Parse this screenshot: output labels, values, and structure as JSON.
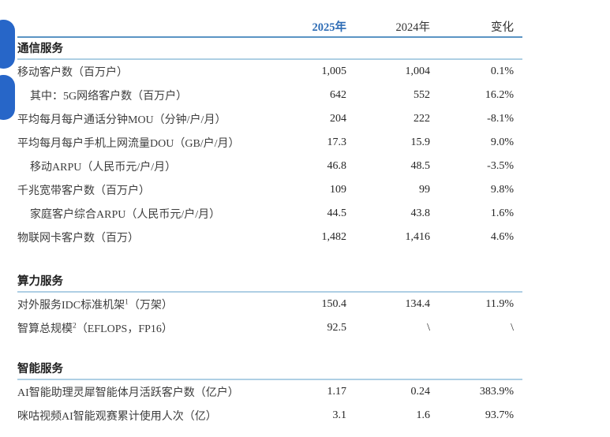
{
  "colors": {
    "accent_blue": "#2e6cb5",
    "pill_blue": "#2766c8",
    "header_rule_blue": "#5b94c4",
    "section_rule_blue": "#aecfe4"
  },
  "header": {
    "col_2025": "2025年",
    "col_2024": "2024年",
    "col_change": "变化"
  },
  "sections": [
    {
      "title": "通信服务",
      "rows": [
        {
          "label": "移动客户数（百万户）",
          "v2025": "1,005",
          "v2024": "1,004",
          "change": "0.1%"
        },
        {
          "label": "其中：5G网络客户数（百万户）",
          "v2025": "642",
          "v2024": "552",
          "change": "16.2%"
        },
        {
          "label": "平均每月每户通话分钟MOU（分钟/户/月）",
          "v2025": "204",
          "v2024": "222",
          "change": "-8.1%"
        },
        {
          "label": "平均每月每户手机上网流量DOU（GB/户/月）",
          "v2025": "17.3",
          "v2024": "15.9",
          "change": "9.0%"
        },
        {
          "label": "移动ARPU（人民币元/户/月）",
          "v2025": "46.8",
          "v2024": "48.5",
          "change": "-3.5%"
        },
        {
          "label": "千兆宽带客户数（百万户）",
          "v2025": "109",
          "v2024": "99",
          "change": "9.8%"
        },
        {
          "label": "家庭客户综合ARPU（人民币元/户/月）",
          "v2025": "44.5",
          "v2024": "43.8",
          "change": "1.6%"
        },
        {
          "label": "物联网卡客户数（百万）",
          "v2025": "1,482",
          "v2024": "1,416",
          "change": "4.6%"
        }
      ]
    },
    {
      "title": "算力服务",
      "rows": [
        {
          "name": "对外服务IDC标准机架",
          "sup": "1",
          "suffix": "（万架）",
          "v2025": "150.4",
          "v2024": "134.4",
          "change": "11.9%"
        },
        {
          "name": "智算总规模",
          "sup": "2",
          "suffix": "（EFLOPS，FP16）",
          "v2025": "92.5",
          "v2024": "\\",
          "change": "\\"
        }
      ]
    },
    {
      "title": "智能服务",
      "rows": [
        {
          "label": "AI智能助理灵犀智能体月活跃客户数（亿户）",
          "v2025": "1.17",
          "v2024": "0.24",
          "change": "383.9%"
        },
        {
          "label": "咪咕视频AI智能观赛累计使用人次（亿）",
          "v2025": "3.1",
          "v2024": "1.6",
          "change": "93.7%"
        }
      ]
    }
  ]
}
